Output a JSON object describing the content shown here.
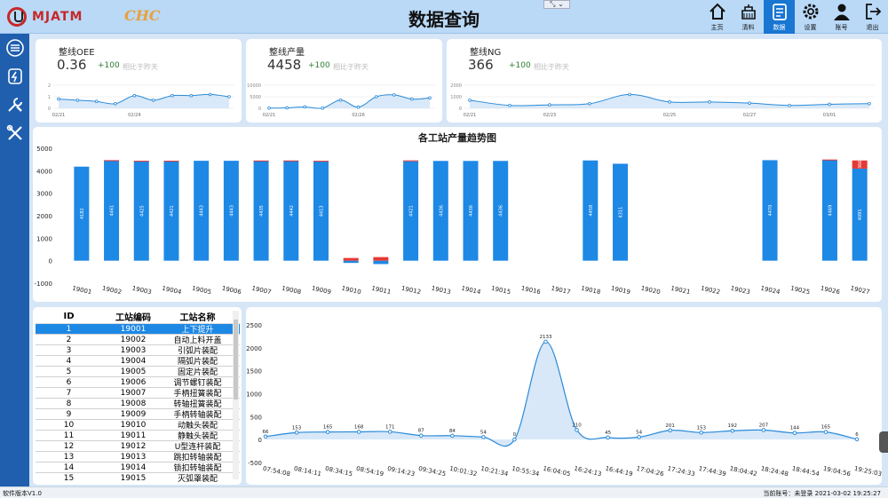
{
  "header": {
    "brand": "MJATM",
    "brand2": "CHC",
    "title": "数据查询",
    "window_ctl": "⤡ ⌄"
  },
  "nav": [
    {
      "label": "主页",
      "icon": "home-icon"
    },
    {
      "label": "清料",
      "icon": "clear-material-icon"
    },
    {
      "label": "数据",
      "icon": "data-icon",
      "active": true
    },
    {
      "label": "设置",
      "icon": "gear-icon"
    },
    {
      "label": "账号",
      "icon": "user-icon"
    },
    {
      "label": "退出",
      "icon": "logout-icon"
    }
  ],
  "sidebar": [
    {
      "icon": "list-icon"
    },
    {
      "icon": "power-icon"
    },
    {
      "icon": "tools-icon"
    },
    {
      "icon": "wrench-icon"
    }
  ],
  "kpi": [
    {
      "title": "整线OEE",
      "value": "0.36",
      "delta": "+100",
      "compare": "相比于昨天",
      "chart_data": {
        "type": "area",
        "x": [
          "02/21",
          "",
          "",
          "",
          "02/24",
          "",
          "",
          "",
          "",
          ""
        ],
        "xticks": [
          "02/21",
          "02/24"
        ],
        "values": [
          0.8,
          0.7,
          0.6,
          0.4,
          1.1,
          0.7,
          1.1,
          1.1,
          1.2,
          1.0
        ],
        "ylim": [
          0,
          2
        ],
        "yticks": [
          "0",
          "1",
          "2"
        ]
      }
    },
    {
      "title": "整线产量",
      "value": "4458",
      "delta": "+100",
      "compare": "相比于昨天",
      "chart_data": {
        "type": "area",
        "x": [
          "02/21",
          "",
          "",
          "",
          "",
          "02/26",
          "",
          "",
          "",
          ""
        ],
        "xticks": [
          "02/21",
          "02/26"
        ],
        "values": [
          100,
          200,
          600,
          100,
          3600,
          500,
          5000,
          5800,
          4000,
          4500
        ],
        "ylim": [
          0,
          10000
        ],
        "yticks": [
          "0",
          "5000",
          "10000"
        ]
      }
    },
    {
      "title": "整线NG",
      "value": "366",
      "delta": "+100",
      "compare": "相比于昨天",
      "chart_data": {
        "type": "area",
        "x": [
          "02/21",
          "",
          "02/23",
          "",
          "",
          "02/25",
          "",
          "02/27",
          "",
          "03/01",
          ""
        ],
        "xticks": [
          "02/21",
          "02/23",
          "02/25",
          "02/27",
          "03/01"
        ],
        "values": [
          700,
          250,
          300,
          400,
          1200,
          550,
          550,
          450,
          250,
          350,
          400
        ],
        "ylim": [
          0,
          2000
        ],
        "yticks": [
          "0",
          "1000",
          "2000"
        ]
      }
    }
  ],
  "bar_chart": {
    "chart_data": {
      "type": "bar",
      "title": "各工站产量趋势图",
      "categories": [
        "19001",
        "19002",
        "19003",
        "19004",
        "19005",
        "19006",
        "19007",
        "19008",
        "19009",
        "19010",
        "19011",
        "19012",
        "19013",
        "19014",
        "19015",
        "19016",
        "19017",
        "19018",
        "19019",
        "19020",
        "19021",
        "19022",
        "19023",
        "19024",
        "19025",
        "19026",
        "19027"
      ],
      "series": [
        {
          "name": "OK",
          "values": [
            4182,
            4461,
            4425,
            4421,
            4443,
            4443,
            4435,
            4442,
            4413,
            -100,
            -150,
            4421,
            4436,
            4436,
            4436,
            0,
            0,
            4458,
            4311,
            0,
            0,
            0,
            0,
            4470,
            0,
            4469,
            4091
          ],
          "labels": [
            "4182",
            "4461",
            "4425",
            "4421",
            "4443",
            "4443",
            "4435",
            "4442",
            "4413",
            "",
            "",
            "4421",
            "4436",
            "4436",
            "4436",
            "",
            "",
            "4458",
            "4311",
            "",
            "",
            "",
            "",
            "4470",
            "",
            "4469",
            "4091"
          ]
        },
        {
          "name": "NG",
          "values": [
            0,
            10,
            20,
            25,
            0,
            0,
            20,
            15,
            30,
            120,
            160,
            40,
            0,
            0,
            0,
            0,
            0,
            0,
            0,
            0,
            0,
            0,
            0,
            0,
            0,
            30,
            366
          ],
          "labels": [
            "",
            "",
            "",
            "",
            "",
            "",
            "",
            "",
            "",
            "",
            "",
            "",
            "",
            "",
            "",
            "",
            "",
            "",
            "",
            "",
            "",
            "",
            "",
            "",
            "",
            "",
            "366"
          ]
        }
      ],
      "ylim": [
        -1000,
        5000
      ],
      "yticks": [
        "-1000",
        "0",
        "1000",
        "2000",
        "3000",
        "4000",
        "5000"
      ]
    }
  },
  "table": {
    "headers": [
      "ID",
      "工站编码",
      "工站名称"
    ],
    "rows": [
      [
        "1",
        "19001",
        "上下提升"
      ],
      [
        "2",
        "19002",
        "自动上料开盖"
      ],
      [
        "3",
        "19003",
        "引弧片装配"
      ],
      [
        "4",
        "19004",
        "隔弧片装配"
      ],
      [
        "5",
        "19005",
        "固定片装配"
      ],
      [
        "6",
        "19006",
        "调节螺钉装配"
      ],
      [
        "7",
        "19007",
        "手柄扭簧装配"
      ],
      [
        "8",
        "19008",
        "转轴扭簧装配"
      ],
      [
        "9",
        "19009",
        "手柄转轴装配"
      ],
      [
        "10",
        "19010",
        "动触头装配"
      ],
      [
        "11",
        "19011",
        "静触头装配"
      ],
      [
        "12",
        "19012",
        "U型连杆装配"
      ],
      [
        "13",
        "19013",
        "跳扣转轴装配"
      ],
      [
        "14",
        "19014",
        "锁扣转轴装配"
      ],
      [
        "15",
        "19015",
        "灭弧罩装配"
      ]
    ],
    "selected": 0
  },
  "line_chart": {
    "chart_data": {
      "type": "area",
      "x": [
        "07:54:08",
        "08:14:11",
        "08:34:15",
        "08:54:19",
        "09:14:23",
        "09:34:25",
        "10:01:32",
        "10:21:34",
        "10:55:34",
        "16:04:05",
        "16:24:13",
        "16:44:19",
        "17:04:26",
        "17:24:33",
        "17:44:39",
        "18:04:42",
        "18:24:48",
        "18:44:54",
        "19:04:56",
        "19:25:03"
      ],
      "values": [
        66,
        153,
        165,
        168,
        171,
        87,
        84,
        54,
        0,
        2133,
        210,
        45,
        54,
        201,
        153,
        192,
        207,
        144,
        165,
        6
      ],
      "ylim": [
        -500,
        2500
      ],
      "yticks": [
        "-500",
        "0",
        "500",
        "1000",
        "1500",
        "2000",
        "2500"
      ]
    }
  },
  "footer": {
    "version": "软件版本V1.0",
    "status": "当前账号：未登录    2021-03-02 19:25:27"
  }
}
